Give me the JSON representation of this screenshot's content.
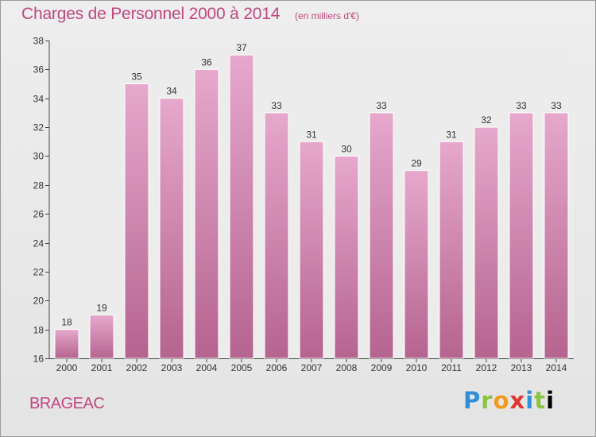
{
  "title": "Charges de Personnel 2000 à 2014",
  "subtitle": "(en milliers d'€)",
  "place": "BRAGEAC",
  "logo": "Proxiti",
  "colors": {
    "bar_top": "#e6a8cc",
    "bar_bottom": "#b5648f",
    "title": "#c2477f"
  },
  "chart_data": {
    "type": "bar",
    "title": "Charges de Personnel 2000 à 2014",
    "subtitle": "(en milliers d'€)",
    "categories": [
      "2000",
      "2001",
      "2002",
      "2003",
      "2004",
      "2005",
      "2006",
      "2007",
      "2008",
      "2009",
      "2010",
      "2011",
      "2012",
      "2013",
      "2014"
    ],
    "values": [
      18,
      19,
      35,
      34,
      36,
      37,
      33,
      31,
      30,
      33,
      29,
      31,
      32,
      33,
      33
    ],
    "yticks": [
      16,
      18,
      20,
      22,
      24,
      26,
      28,
      30,
      32,
      34,
      36,
      38
    ],
    "ylim": [
      16,
      38
    ],
    "grid": false,
    "data_labels": true,
    "legend": "none"
  }
}
